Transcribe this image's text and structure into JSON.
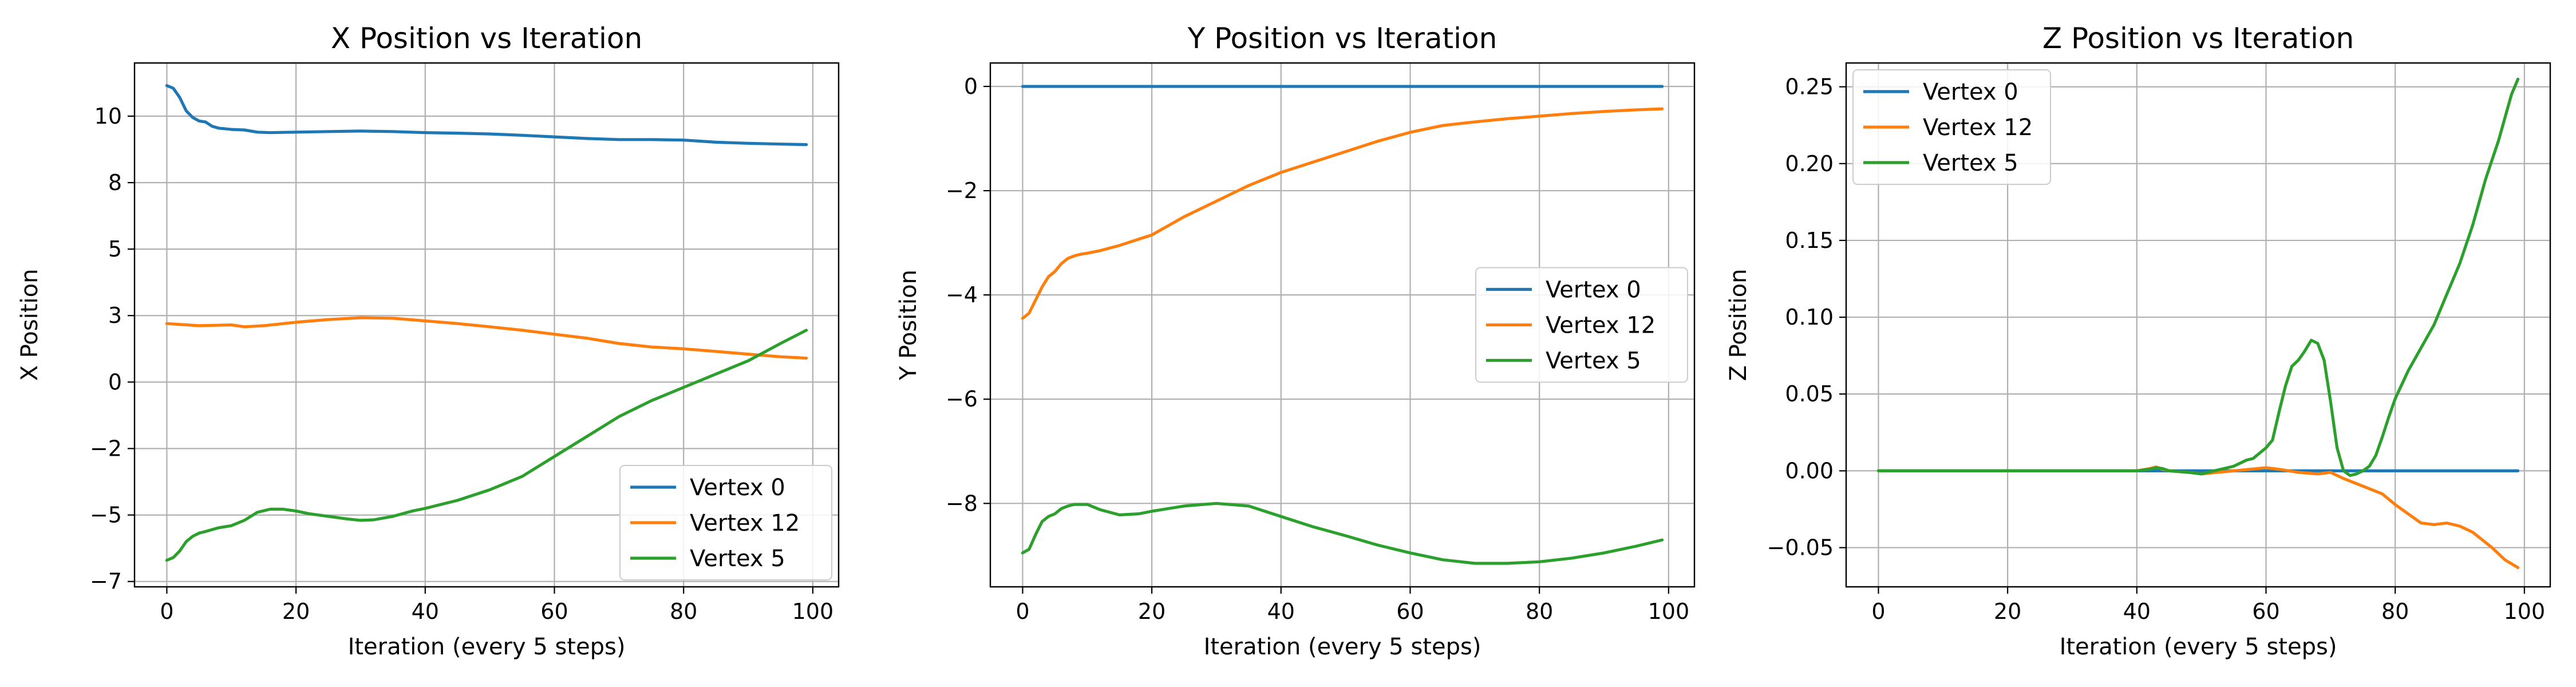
{
  "chart_data": [
    {
      "type": "line",
      "title": "X Position vs Iteration",
      "xlabel": "Iteration (every 5 steps)",
      "ylabel": "X Position",
      "xlim": [
        -5,
        104
      ],
      "ylim": [
        -7.7,
        12.0
      ],
      "xticks": [
        0,
        20,
        40,
        60,
        80,
        100
      ],
      "yticks": [
        -7.5,
        -5.0,
        -2.5,
        0.0,
        2.5,
        5.0,
        7.5,
        10.0
      ],
      "grid": true,
      "legend": "lower-right",
      "series": [
        {
          "name": "Vertex 0",
          "color": "#1f77b4",
          "x": [
            0,
            1,
            2,
            3,
            4,
            5,
            6,
            7,
            8,
            10,
            12,
            14,
            16,
            20,
            25,
            30,
            35,
            40,
            45,
            50,
            55,
            60,
            65,
            70,
            75,
            80,
            85,
            90,
            95,
            99
          ],
          "y": [
            11.15,
            11.05,
            10.7,
            10.2,
            9.95,
            9.82,
            9.78,
            9.62,
            9.55,
            9.5,
            9.48,
            9.4,
            9.38,
            9.4,
            9.42,
            9.44,
            9.42,
            9.38,
            9.36,
            9.33,
            9.28,
            9.22,
            9.16,
            9.12,
            9.12,
            9.1,
            9.02,
            8.98,
            8.95,
            8.93
          ]
        },
        {
          "name": "Vertex 12",
          "color": "#ff7f0e",
          "x": [
            0,
            5,
            10,
            12,
            15,
            20,
            25,
            30,
            35,
            40,
            45,
            50,
            55,
            60,
            65,
            70,
            75,
            80,
            85,
            90,
            95,
            99
          ],
          "y": [
            2.2,
            2.12,
            2.15,
            2.08,
            2.12,
            2.25,
            2.35,
            2.42,
            2.4,
            2.3,
            2.2,
            2.08,
            1.95,
            1.8,
            1.65,
            1.45,
            1.32,
            1.25,
            1.15,
            1.05,
            0.95,
            0.9
          ]
        },
        {
          "name": "Vertex 5",
          "color": "#2ca02c",
          "x": [
            0,
            1,
            2,
            3,
            4,
            5,
            6,
            7,
            8,
            10,
            12,
            14,
            16,
            18,
            20,
            22,
            25,
            28,
            30,
            32,
            35,
            38,
            40,
            45,
            50,
            55,
            60,
            65,
            70,
            75,
            80,
            85,
            90,
            95,
            99
          ],
          "y": [
            -6.7,
            -6.6,
            -6.35,
            -6.0,
            -5.8,
            -5.68,
            -5.62,
            -5.55,
            -5.48,
            -5.4,
            -5.2,
            -4.9,
            -4.78,
            -4.78,
            -4.85,
            -4.95,
            -5.05,
            -5.15,
            -5.2,
            -5.18,
            -5.05,
            -4.85,
            -4.75,
            -4.45,
            -4.05,
            -3.55,
            -2.8,
            -2.05,
            -1.3,
            -0.7,
            -0.2,
            0.3,
            0.8,
            1.45,
            1.95
          ]
        }
      ]
    },
    {
      "type": "line",
      "title": "Y Position vs Iteration",
      "xlabel": "Iteration (every 5 steps)",
      "ylabel": "Y Position",
      "xlim": [
        -5,
        104
      ],
      "ylim": [
        -9.6,
        0.45
      ],
      "xticks": [
        0,
        20,
        40,
        60,
        80,
        100
      ],
      "yticks": [
        -8,
        -6,
        -4,
        -2,
        0
      ],
      "grid": true,
      "legend": "center-right",
      "series": [
        {
          "name": "Vertex 0",
          "color": "#1f77b4",
          "x": [
            0,
            99
          ],
          "y": [
            0,
            0
          ]
        },
        {
          "name": "Vertex 12",
          "color": "#ff7f0e",
          "x": [
            0,
            1,
            2,
            3,
            4,
            5,
            6,
            7,
            8,
            9,
            10,
            12,
            15,
            20,
            25,
            30,
            35,
            40,
            45,
            50,
            55,
            60,
            65,
            70,
            75,
            80,
            85,
            90,
            95,
            99
          ],
          "y": [
            -4.45,
            -4.35,
            -4.1,
            -3.85,
            -3.65,
            -3.55,
            -3.4,
            -3.3,
            -3.25,
            -3.22,
            -3.2,
            -3.15,
            -3.05,
            -2.85,
            -2.5,
            -2.2,
            -1.9,
            -1.65,
            -1.45,
            -1.25,
            -1.05,
            -0.88,
            -0.75,
            -0.68,
            -0.62,
            -0.57,
            -0.52,
            -0.48,
            -0.45,
            -0.43
          ]
        },
        {
          "name": "Vertex 5",
          "color": "#2ca02c",
          "x": [
            0,
            1,
            2,
            3,
            4,
            5,
            6,
            7,
            8,
            9,
            10,
            12,
            15,
            18,
            20,
            25,
            30,
            35,
            40,
            45,
            50,
            55,
            60,
            65,
            70,
            75,
            80,
            85,
            90,
            95,
            99
          ],
          "y": [
            -8.95,
            -8.88,
            -8.6,
            -8.35,
            -8.25,
            -8.2,
            -8.1,
            -8.05,
            -8.02,
            -8.02,
            -8.02,
            -8.12,
            -8.22,
            -8.2,
            -8.15,
            -8.05,
            -8.0,
            -8.05,
            -8.25,
            -8.45,
            -8.62,
            -8.8,
            -8.95,
            -9.08,
            -9.15,
            -9.15,
            -9.12,
            -9.05,
            -8.95,
            -8.82,
            -8.7
          ]
        }
      ]
    },
    {
      "type": "line",
      "title": "Z Position vs Iteration",
      "xlabel": "Iteration (every 5 steps)",
      "ylabel": "Z Position",
      "xlim": [
        -5,
        104
      ],
      "ylim": [
        -0.0755,
        0.2655
      ],
      "xticks": [
        0,
        20,
        40,
        60,
        80,
        100
      ],
      "yticks": [
        -0.05,
        0.0,
        0.05,
        0.1,
        0.15,
        0.2,
        0.25
      ],
      "grid": true,
      "legend": "upper-left",
      "series": [
        {
          "name": "Vertex 0",
          "color": "#1f77b4",
          "x": [
            0,
            99
          ],
          "y": [
            0,
            0
          ]
        },
        {
          "name": "Vertex 12",
          "color": "#ff7f0e",
          "x": [
            0,
            40,
            42,
            43,
            44,
            45,
            48,
            50,
            55,
            60,
            62,
            65,
            68,
            70,
            72,
            75,
            78,
            80,
            82,
            84,
            86,
            88,
            90,
            92,
            95,
            97,
            99
          ],
          "y": [
            0,
            0,
            0.0015,
            0.0025,
            0.001,
            0,
            -0.001,
            -0.002,
            0,
            0.002,
            0.001,
            -0.001,
            -0.002,
            -0.001,
            -0.005,
            -0.01,
            -0.015,
            -0.022,
            -0.028,
            -0.034,
            -0.035,
            -0.034,
            -0.036,
            -0.04,
            -0.05,
            -0.058,
            -0.063
          ]
        },
        {
          "name": "Vertex 5",
          "color": "#2ca02c",
          "x": [
            0,
            40,
            42,
            43,
            44,
            45,
            48,
            50,
            52,
            55,
            57,
            58,
            60,
            61,
            62,
            63,
            64,
            65,
            66,
            67,
            68,
            69,
            70,
            71,
            72,
            73,
            74,
            75,
            76,
            77,
            78,
            79,
            80,
            82,
            84,
            86,
            88,
            90,
            92,
            94,
            96,
            98,
            99
          ],
          "y": [
            0,
            0,
            0.001,
            0.002,
            0.0015,
            0,
            -0.001,
            -0.002,
            0,
            0.003,
            0.007,
            0.008,
            0.015,
            0.02,
            0.038,
            0.055,
            0.068,
            0.072,
            0.078,
            0.085,
            0.083,
            0.072,
            0.045,
            0.015,
            0.0,
            -0.003,
            -0.002,
            0.0,
            0.003,
            0.01,
            0.022,
            0.035,
            0.047,
            0.065,
            0.08,
            0.095,
            0.115,
            0.135,
            0.16,
            0.19,
            0.215,
            0.245,
            0.255
          ]
        }
      ]
    }
  ]
}
